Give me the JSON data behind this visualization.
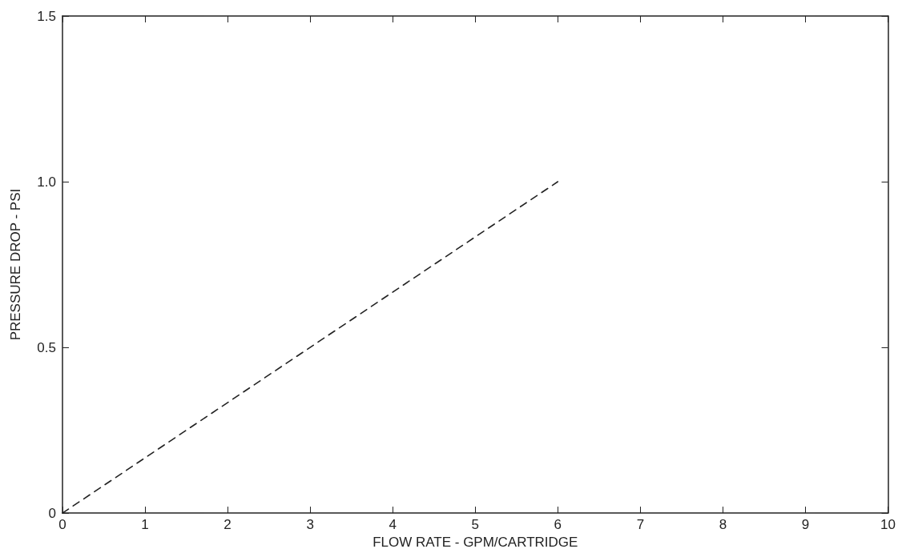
{
  "chart_data": {
    "type": "line",
    "xlabel": "FLOW RATE - GPM/CARTRIDGE",
    "ylabel": "PRESSURE DROP - PSI",
    "x": [
      0,
      6
    ],
    "series": [
      {
        "color": "#222222",
        "values": [
          0,
          1.0
        ]
      }
    ],
    "xlim": [
      0,
      10
    ],
    "xticks": [
      0,
      1,
      2,
      3,
      4,
      5,
      6,
      7,
      8,
      9,
      10
    ],
    "ylim": [
      0,
      1.5
    ],
    "yticks": [
      0,
      0.5,
      {
        "value": 1,
        "label": "1.0"
      },
      1.5
    ],
    "line_style": "dashed",
    "marker": "none"
  }
}
